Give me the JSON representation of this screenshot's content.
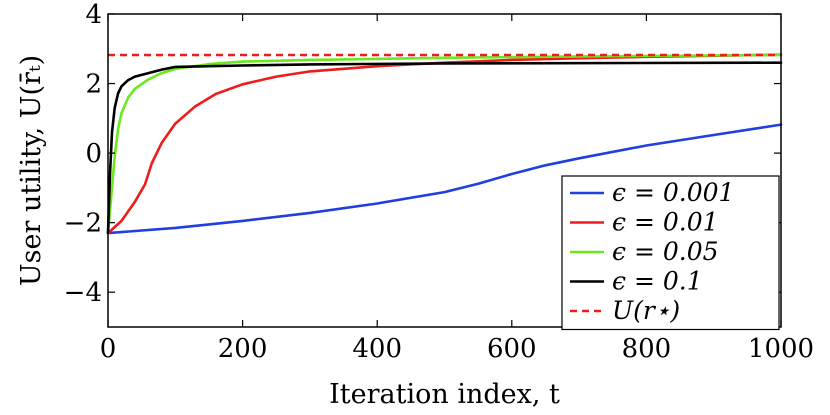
{
  "chart_data": {
    "type": "line",
    "title": "",
    "xlabel": "Iteration index, t",
    "ylabel": "User utility, U(r̄ₜ)",
    "xlim": [
      0,
      1000
    ],
    "ylim": [
      -5,
      4
    ],
    "grid": false,
    "legend_position": "bottom-right",
    "x_ticks": [
      0,
      200,
      400,
      600,
      800,
      1000
    ],
    "y_ticks": [
      -4,
      -2,
      0,
      2,
      4
    ],
    "x_tick_labels": [
      "0",
      "200",
      "400",
      "600",
      "800",
      "1000"
    ],
    "y_tick_labels": [
      "−4",
      "−2",
      "0",
      "2",
      "4"
    ],
    "series": [
      {
        "name": "ϵ = 0.001",
        "color": "#1f3fe0",
        "dash": "solid",
        "x": [
          0,
          100,
          200,
          300,
          400,
          500,
          550,
          600,
          650,
          700,
          800,
          900,
          1000
        ],
        "y": [
          -2.3,
          -2.15,
          -1.95,
          -1.72,
          -1.45,
          -1.12,
          -0.88,
          -0.6,
          -0.35,
          -0.15,
          0.22,
          0.52,
          0.82
        ]
      },
      {
        "name": "ϵ = 0.01",
        "color": "#ee1c1c",
        "dash": "solid",
        "x": [
          0,
          20,
          40,
          55,
          65,
          80,
          100,
          130,
          160,
          200,
          250,
          300,
          400,
          500,
          600,
          700,
          800,
          1000
        ],
        "y": [
          -2.3,
          -1.95,
          -1.4,
          -0.9,
          -0.3,
          0.3,
          0.85,
          1.35,
          1.7,
          1.98,
          2.2,
          2.35,
          2.5,
          2.6,
          2.68,
          2.73,
          2.77,
          2.83
        ]
      },
      {
        "name": "ϵ = 0.05",
        "color": "#6be81f",
        "dash": "solid",
        "x": [
          0,
          5,
          10,
          15,
          20,
          30,
          40,
          60,
          80,
          100,
          150,
          200,
          300,
          500,
          700,
          1000
        ],
        "y": [
          -2.3,
          -1.2,
          -0.1,
          0.7,
          1.15,
          1.6,
          1.85,
          2.12,
          2.3,
          2.42,
          2.56,
          2.63,
          2.68,
          2.74,
          2.78,
          2.82
        ]
      },
      {
        "name": "ϵ = 0.1",
        "color": "#000000",
        "dash": "solid",
        "x": [
          0,
          3,
          6,
          10,
          15,
          20,
          30,
          40,
          60,
          80,
          100,
          150,
          200,
          300,
          500,
          1000
        ],
        "y": [
          -2.3,
          -0.6,
          0.6,
          1.3,
          1.72,
          1.92,
          2.1,
          2.2,
          2.3,
          2.4,
          2.48,
          2.5,
          2.52,
          2.55,
          2.58,
          2.6
        ]
      },
      {
        "name": "U(r⋆)",
        "color": "#ee1c1c",
        "dash": "dashed",
        "x": [
          0,
          1000
        ],
        "y": [
          2.82,
          2.82
        ]
      }
    ]
  }
}
